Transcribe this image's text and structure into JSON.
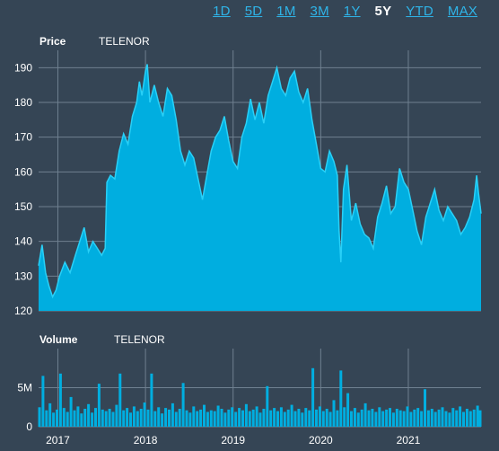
{
  "range_selector": {
    "buttons": [
      "1D",
      "5D",
      "1M",
      "3M",
      "1Y",
      "5Y",
      "YTD",
      "MAX"
    ],
    "active": "5Y",
    "active_color": "#ffffff",
    "link_color": "#2fb4e8"
  },
  "colors": {
    "background": "#354555",
    "fill": "#00aee0",
    "line": "#29d0f7",
    "grid": "#6f8090",
    "text": "#ffffff"
  },
  "price_panel": {
    "title": "Price",
    "ticker": "TELENOR"
  },
  "volume_panel": {
    "title": "Volume",
    "ticker": "TELENOR"
  },
  "chart_data": [
    {
      "type": "area",
      "title": "Price",
      "subtitle": "TELENOR",
      "ylim": [
        120,
        195
      ],
      "yticks": [
        120,
        130,
        140,
        150,
        160,
        170,
        180,
        190
      ],
      "xlim": [
        2016.78,
        2021.83
      ],
      "xticks": [
        2017,
        2018,
        2019,
        2020,
        2021
      ],
      "xtick_labels": [
        "2017",
        "2018",
        "2019",
        "2020",
        "2021"
      ],
      "grid": true,
      "series": [
        {
          "x": [
            2016.78,
            2016.82,
            2016.86,
            2016.9,
            2016.94,
            2016.98,
            2017.02,
            2017.08,
            2017.14,
            2017.2,
            2017.25,
            2017.3,
            2017.35,
            2017.4,
            2017.45,
            2017.5,
            2017.54,
            2017.56,
            2017.6,
            2017.65,
            2017.7,
            2017.75,
            2017.8,
            2017.85,
            2017.9,
            2017.93,
            2017.96,
            2018.0,
            2018.02,
            2018.05,
            2018.1,
            2018.15,
            2018.2,
            2018.25,
            2018.3,
            2018.35,
            2018.4,
            2018.45,
            2018.5,
            2018.55,
            2018.6,
            2018.65,
            2018.7,
            2018.75,
            2018.8,
            2018.85,
            2018.9,
            2018.95,
            2019.0,
            2019.05,
            2019.1,
            2019.15,
            2019.2,
            2019.25,
            2019.3,
            2019.35,
            2019.4,
            2019.45,
            2019.5,
            2019.55,
            2019.6,
            2019.65,
            2019.7,
            2019.75,
            2019.8,
            2019.85,
            2019.9,
            2019.95,
            2020.0,
            2020.05,
            2020.1,
            2020.15,
            2020.19,
            2020.21,
            2020.23,
            2020.26,
            2020.3,
            2020.35,
            2020.4,
            2020.45,
            2020.5,
            2020.55,
            2020.6,
            2020.65,
            2020.7,
            2020.75,
            2020.8,
            2020.85,
            2020.9,
            2020.95,
            2021.0,
            2021.05,
            2021.1,
            2021.15,
            2021.2,
            2021.25,
            2021.3,
            2021.35,
            2021.4,
            2021.45,
            2021.5,
            2021.55,
            2021.6,
            2021.65,
            2021.7,
            2021.75,
            2021.78,
            2021.8,
            2021.83
          ],
          "y": [
            133,
            139,
            131,
            127,
            124,
            126,
            130,
            134,
            131,
            136,
            140,
            144,
            137,
            140,
            138,
            136,
            138,
            157,
            159,
            158,
            166,
            171,
            168,
            176,
            180,
            186,
            182,
            189,
            191,
            180,
            185,
            180,
            176,
            184,
            182,
            175,
            166,
            162,
            166,
            164,
            158,
            152,
            159,
            166,
            170,
            172,
            176,
            169,
            163,
            161,
            170,
            174,
            181,
            175,
            180,
            174,
            182,
            186,
            190,
            184,
            182,
            187,
            189,
            183,
            180,
            184,
            175,
            168,
            161,
            160,
            166,
            163,
            159,
            143,
            134,
            155,
            162,
            146,
            151,
            145,
            142,
            141,
            138,
            147,
            151,
            156,
            148,
            150,
            161,
            157,
            155,
            149,
            143,
            139,
            147,
            151,
            155,
            149,
            146,
            150,
            148,
            146,
            142,
            144,
            147,
            152,
            159,
            154,
            148
          ]
        }
      ]
    },
    {
      "type": "bar",
      "title": "Volume",
      "subtitle": "TELENOR",
      "ylim": [
        0,
        10
      ],
      "yticks": [
        0,
        5
      ],
      "ytick_labels": [
        "0",
        "5M"
      ],
      "y_unit": "M shares",
      "xlim": [
        2016.78,
        2021.83
      ],
      "grid": true,
      "series": [
        {
          "x": [
            2016.79,
            2016.83,
            2016.87,
            2016.91,
            2016.95,
            2016.99,
            2017.03,
            2017.07,
            2017.11,
            2017.15,
            2017.19,
            2017.23,
            2017.27,
            2017.31,
            2017.35,
            2017.39,
            2017.43,
            2017.47,
            2017.51,
            2017.55,
            2017.59,
            2017.63,
            2017.67,
            2017.71,
            2017.75,
            2017.79,
            2017.83,
            2017.87,
            2017.91,
            2017.95,
            2017.99,
            2018.03,
            2018.07,
            2018.11,
            2018.15,
            2018.19,
            2018.23,
            2018.27,
            2018.31,
            2018.35,
            2018.39,
            2018.43,
            2018.47,
            2018.51,
            2018.55,
            2018.59,
            2018.63,
            2018.67,
            2018.71,
            2018.75,
            2018.79,
            2018.83,
            2018.87,
            2018.91,
            2018.95,
            2018.99,
            2019.03,
            2019.07,
            2019.11,
            2019.15,
            2019.19,
            2019.23,
            2019.27,
            2019.31,
            2019.35,
            2019.39,
            2019.43,
            2019.47,
            2019.51,
            2019.55,
            2019.59,
            2019.63,
            2019.67,
            2019.71,
            2019.75,
            2019.79,
            2019.83,
            2019.87,
            2019.91,
            2019.95,
            2019.99,
            2020.03,
            2020.07,
            2020.11,
            2020.15,
            2020.19,
            2020.23,
            2020.27,
            2020.31,
            2020.35,
            2020.39,
            2020.43,
            2020.47,
            2020.51,
            2020.55,
            2020.59,
            2020.63,
            2020.67,
            2020.71,
            2020.75,
            2020.79,
            2020.83,
            2020.87,
            2020.91,
            2020.95,
            2020.99,
            2021.03,
            2021.07,
            2021.11,
            2021.15,
            2021.19,
            2021.23,
            2021.27,
            2021.31,
            2021.35,
            2021.39,
            2021.43,
            2021.47,
            2021.51,
            2021.55,
            2021.59,
            2021.63,
            2021.67,
            2021.71,
            2021.75,
            2021.79,
            2021.82
          ],
          "y": [
            2.5,
            6.5,
            2.1,
            3.0,
            1.8,
            2.2,
            6.8,
            2.4,
            1.9,
            3.8,
            2.1,
            2.6,
            1.7,
            2.3,
            2.9,
            1.8,
            2.4,
            5.5,
            2.2,
            2.0,
            2.3,
            1.9,
            2.8,
            6.8,
            2.1,
            2.4,
            1.8,
            2.6,
            2.0,
            2.3,
            3.1,
            2.2,
            6.8,
            2.0,
            2.5,
            1.7,
            2.4,
            2.2,
            3.0,
            1.9,
            2.3,
            5.6,
            2.1,
            1.8,
            2.6,
            2.0,
            2.2,
            2.8,
            1.9,
            2.1,
            2.0,
            2.7,
            2.3,
            1.8,
            2.2,
            2.5,
            1.9,
            2.4,
            2.1,
            2.9,
            2.0,
            2.2,
            2.6,
            1.8,
            2.3,
            5.2,
            2.1,
            2.4,
            2.0,
            2.5,
            1.9,
            2.2,
            2.8,
            2.0,
            2.3,
            1.8,
            2.4,
            2.1,
            7.5,
            2.2,
            2.6,
            2.0,
            2.3,
            1.9,
            3.4,
            2.1,
            7.2,
            2.5,
            4.3,
            2.0,
            2.4,
            1.8,
            2.2,
            3.0,
            2.1,
            2.3,
            1.9,
            2.5,
            2.0,
            2.2,
            2.4,
            1.8,
            2.3,
            2.1,
            2.0,
            2.6,
            1.9,
            2.2,
            2.4,
            2.0,
            4.8,
            2.1,
            2.3,
            1.9,
            2.2,
            2.5,
            2.0,
            1.8,
            2.4,
            2.1,
            2.6,
            1.9,
            2.3,
            2.0,
            2.2,
            2.7,
            2.1
          ]
        }
      ]
    }
  ]
}
